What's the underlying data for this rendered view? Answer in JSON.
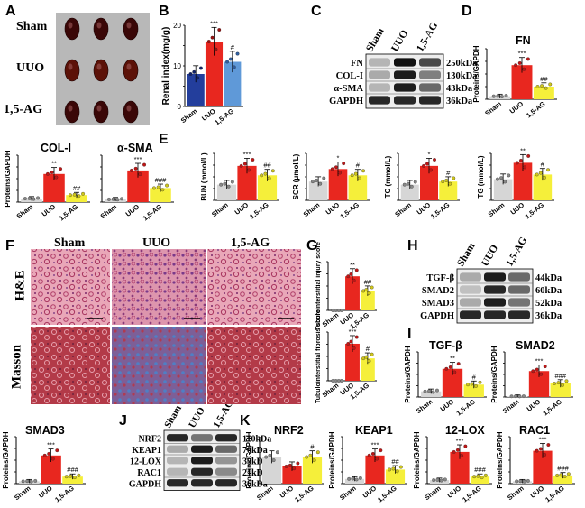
{
  "panel_letters": [
    "A",
    "B",
    "C",
    "D",
    "E",
    "F",
    "G",
    "H",
    "I",
    "J",
    "K"
  ],
  "panel_a": {
    "rows": [
      "Sham",
      "UUO",
      "1,5-AG"
    ]
  },
  "groups": [
    "Sham",
    "UUO",
    "1,5-AG"
  ],
  "colors": {
    "sham": "#d6d6d6",
    "uuo": "#e8271f",
    "ag": "#f5ef3a",
    "uuo_dot": "#c01616",
    "ag_dot": "#cfc61c",
    "b_sham": "#233e9c",
    "b_uuo": "#e8271f",
    "b_ag": "#5f99d8"
  },
  "blot_c": {
    "headers": [
      "Sham",
      "UUO",
      "1,5-AG"
    ],
    "rows": [
      {
        "label": "FN",
        "size": "250kDa"
      },
      {
        "label": "COL-I",
        "size": "130kDa"
      },
      {
        "label": "α-SMA",
        "size": "43kDa"
      },
      {
        "label": "GAPDH",
        "size": "36kDa"
      }
    ]
  },
  "blot_h": {
    "headers": [
      "Sham",
      "UUO",
      "1,5-AG"
    ],
    "rows": [
      {
        "label": "TGF-β",
        "size": "44kDa"
      },
      {
        "label": "SMAD2",
        "size": "60kDa"
      },
      {
        "label": "SMAD3",
        "size": "52kDa"
      },
      {
        "label": "GAPDH",
        "size": "36kDa"
      }
    ]
  },
  "blot_j": {
    "headers": [
      "Sham",
      "UUO",
      "1,5-AG"
    ],
    "rows": [
      {
        "label": "NRF2",
        "size": "110kDa"
      },
      {
        "label": "KEAP1",
        "size": "70kDa"
      },
      {
        "label": "12-LOX",
        "size": "39kDa"
      },
      {
        "label": "RAC1",
        "size": "21kDa"
      },
      {
        "label": "GAPDH",
        "size": "36kDa"
      }
    ]
  },
  "histo": {
    "cols": [
      "Sham",
      "UUO",
      "1,5-AG"
    ],
    "rows": [
      "H&E",
      "Masson"
    ]
  },
  "chart_data": [
    {
      "panel": "B",
      "type": "bar",
      "categories": [
        "Sham",
        "UUO",
        "1,5-AG"
      ],
      "values": [
        8,
        16,
        11
      ],
      "ylabel": "Renal index(mg/g)",
      "ylim": [
        0,
        20
      ],
      "ticks": [
        0,
        10,
        20
      ],
      "marks": [
        "",
        "***",
        "#"
      ]
    },
    {
      "panel": "D",
      "type": "bar",
      "title": "FN",
      "categories": [
        "Sham",
        "UUO",
        "1,5-AG"
      ],
      "values": [
        0.12,
        1.35,
        0.5
      ],
      "ylabel": "Proteins/GAPDH",
      "ylim": [
        0,
        2
      ],
      "marks": [
        "",
        "***",
        "##"
      ]
    },
    {
      "panel": "D",
      "type": "bar",
      "title": "COL-I",
      "categories": [
        "Sham",
        "UUO",
        "1,5-AG"
      ],
      "values": [
        0.15,
        1.2,
        0.3
      ],
      "ylabel": "Proteins/GAPDH",
      "ylim": [
        0,
        2
      ],
      "marks": [
        "",
        "**",
        "##"
      ]
    },
    {
      "panel": "D",
      "type": "bar",
      "title": "α-SMA",
      "categories": [
        "Sham",
        "UUO",
        "1,5-AG"
      ],
      "values": [
        0.12,
        1.35,
        0.6
      ],
      "ylabel": "",
      "ylim": [
        0,
        2
      ],
      "marks": [
        "",
        "***",
        "###"
      ]
    },
    {
      "panel": "E",
      "type": "bar",
      "categories": [
        "Sham",
        "UUO",
        "1,5-AG"
      ],
      "values": [
        5,
        11,
        8
      ],
      "ylabel": "BUN (mmol/L)",
      "ylim": [
        0,
        15
      ],
      "marks": [
        "",
        "***",
        "##"
      ]
    },
    {
      "panel": "E",
      "type": "bar",
      "categories": [
        "Sham",
        "UUO",
        "1,5-AG"
      ],
      "values": [
        6,
        10,
        8
      ],
      "ylabel": "SCR (μmol/L)",
      "ylim": [
        0,
        15
      ],
      "marks": [
        "",
        "*",
        "#"
      ]
    },
    {
      "panel": "E",
      "type": "bar",
      "categories": [
        "Sham",
        "UUO",
        "1,5-AG"
      ],
      "values": [
        1,
        2.2,
        1.2
      ],
      "ylabel": "TC (mmol/L)",
      "ylim": [
        0,
        3
      ],
      "marks": [
        "",
        "*",
        "#"
      ]
    },
    {
      "panel": "E",
      "type": "bar",
      "categories": [
        "Sham",
        "UUO",
        "1,5-AG"
      ],
      "values": [
        0.9,
        1.6,
        1.1
      ],
      "ylabel": "TG (mmol/L)",
      "ylim": [
        0,
        2
      ],
      "marks": [
        "",
        "**",
        "#"
      ]
    },
    {
      "panel": "G",
      "type": "bar",
      "categories": [
        "Sham",
        "UUO",
        "1,5-AG"
      ],
      "values": [
        0,
        3.5,
        2
      ],
      "ylabel": "Tubulointerstitial injury score",
      "ylim": [
        0,
        5
      ],
      "marks": [
        "",
        "**",
        "##"
      ]
    },
    {
      "panel": "G",
      "type": "bar",
      "categories": [
        "Sham",
        "UUO",
        "1,5-AG"
      ],
      "values": [
        0,
        3.8,
        2.3
      ],
      "ylabel": "Tubulointerstitial fibrosis score",
      "ylim": [
        0,
        5
      ],
      "marks": [
        "",
        "***",
        "#"
      ]
    },
    {
      "panel": "I",
      "type": "bar",
      "title": "TGF-β",
      "categories": [
        "Sham",
        "UUO",
        "1,5-AG"
      ],
      "values": [
        0.25,
        1.25,
        0.55
      ],
      "ylabel": "Proteins/GAPDH",
      "ylim": [
        0,
        2
      ],
      "marks": [
        "",
        "**",
        "#"
      ]
    },
    {
      "panel": "I",
      "type": "bar",
      "title": "SMAD2",
      "categories": [
        "Sham",
        "UUO",
        "1,5-AG"
      ],
      "values": [
        0.03,
        1.15,
        0.6
      ],
      "ylabel": "Proteins/GAPDH",
      "ylim": [
        0,
        2
      ],
      "marks": [
        "",
        "***",
        "###"
      ]
    },
    {
      "panel": "I",
      "type": "bar",
      "title": "SMAD3",
      "categories": [
        "Sham",
        "UUO",
        "1,5-AG"
      ],
      "values": [
        0.1,
        1.2,
        0.3
      ],
      "ylabel": "Proteins/GAPDH",
      "ylim": [
        0,
        2
      ],
      "marks": [
        "",
        "***",
        "###"
      ]
    },
    {
      "panel": "K",
      "type": "bar",
      "title": "NRF2",
      "categories": [
        "Sham",
        "UUO",
        "1,5-AG"
      ],
      "values": [
        0.85,
        0.55,
        0.85
      ],
      "ylabel": "Proteins/GAPDH",
      "ylim": [
        0,
        1.5
      ],
      "marks": [
        "",
        "",
        "#"
      ]
    },
    {
      "panel": "K",
      "type": "bar",
      "title": "KEAP1",
      "categories": [
        "Sham",
        "UUO",
        "1,5-AG"
      ],
      "values": [
        0.2,
        1.2,
        0.6
      ],
      "ylabel": "Proteins/GAPDH",
      "ylim": [
        0,
        2
      ],
      "marks": [
        "",
        "***",
        "##"
      ]
    },
    {
      "panel": "K",
      "type": "bar",
      "title": "12-LOX",
      "categories": [
        "Sham",
        "UUO",
        "1,5-AG"
      ],
      "values": [
        0.15,
        1.35,
        0.3
      ],
      "ylabel": "Proteins/GAPDH",
      "ylim": [
        0,
        2
      ],
      "marks": [
        "",
        "***",
        "###"
      ]
    },
    {
      "panel": "K",
      "type": "bar",
      "title": "RAC1",
      "categories": [
        "Sham",
        "UUO",
        "1,5-AG"
      ],
      "values": [
        0.1,
        1.4,
        0.35
      ],
      "ylabel": "Proteins/GAPDH",
      "ylim": [
        0,
        2
      ],
      "marks": [
        "",
        "***",
        "###"
      ]
    }
  ]
}
